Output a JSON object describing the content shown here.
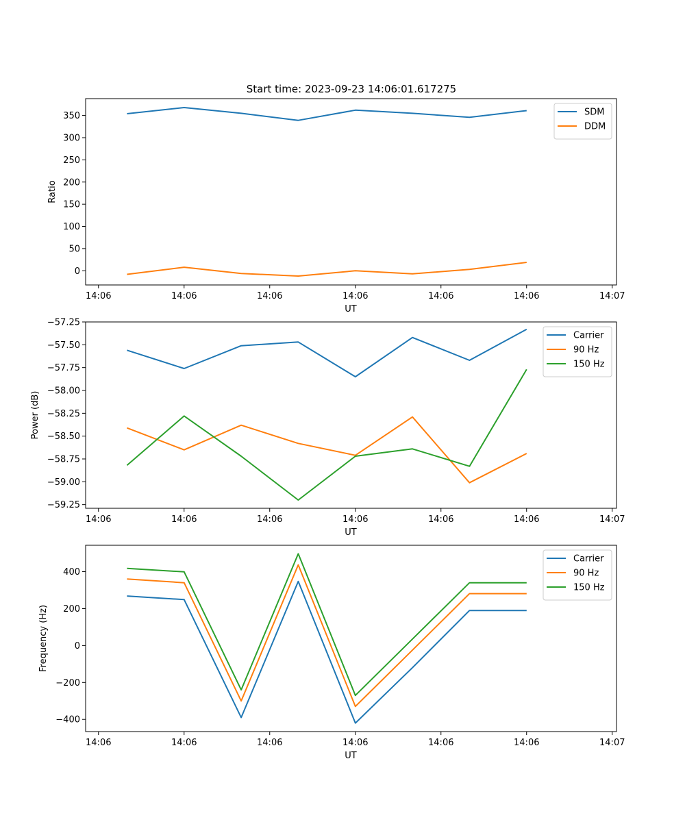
{
  "chart_data": [
    {
      "type": "line",
      "title": "Start time: 2023-09-23 14:06:01.617275",
      "xlabel": "UT",
      "ylabel": "Ratio",
      "x": [
        1,
        2,
        3,
        4,
        5,
        6,
        7,
        8
      ],
      "xlim": [
        0.275,
        9.575
      ],
      "x_ticks": [
        0.5,
        2,
        3.5,
        5,
        6.5,
        8,
        9.5
      ],
      "x_tick_labels": [
        "14:06",
        "14:06",
        "14:06",
        "14:06",
        "14:06",
        "14:06",
        "14:07"
      ],
      "ylim": [
        -32,
        388
      ],
      "y_ticks": [
        0,
        50,
        100,
        150,
        200,
        250,
        300,
        350
      ],
      "y_tick_labels": [
        "0",
        "50",
        "100",
        "150",
        "200",
        "250",
        "300",
        "350"
      ],
      "legend_position": "top-right",
      "series": [
        {
          "name": "SDM",
          "color": "#1f77b4",
          "values": [
            354,
            368,
            355,
            339,
            362,
            355,
            346,
            361
          ]
        },
        {
          "name": "DDM",
          "color": "#ff7f0e",
          "values": [
            -8,
            8,
            -6,
            -12,
            0,
            -7,
            3,
            19
          ]
        }
      ]
    },
    {
      "type": "line",
      "title": "",
      "xlabel": "UT",
      "ylabel": "Power (dB)",
      "x": [
        1,
        2,
        3,
        4,
        5,
        6,
        7,
        8
      ],
      "xlim": [
        0.275,
        9.575
      ],
      "x_ticks": [
        0.5,
        2,
        3.5,
        5,
        6.5,
        8,
        9.5
      ],
      "x_tick_labels": [
        "14:06",
        "14:06",
        "14:06",
        "14:06",
        "14:06",
        "14:06",
        "14:07"
      ],
      "ylim": [
        -59.29,
        -57.25
      ],
      "y_ticks": [
        -57.25,
        -57.5,
        -57.75,
        -58,
        -58.25,
        -58.5,
        -58.75,
        -59,
        -59.25
      ],
      "y_tick_labels": [
        "−57.25",
        "−57.50",
        "−57.75",
        "−58.00",
        "−58.25",
        "−58.50",
        "−58.75",
        "−59.00",
        "−59.25"
      ],
      "legend_position": "top-right",
      "series": [
        {
          "name": "Carrier",
          "color": "#1f77b4",
          "values": [
            -57.56,
            -57.76,
            -57.51,
            -57.47,
            -57.85,
            -57.42,
            -57.67,
            -57.33
          ]
        },
        {
          "name": "90 Hz",
          "color": "#ff7f0e",
          "values": [
            -58.41,
            -58.65,
            -58.38,
            -58.58,
            -58.71,
            -58.29,
            -59.01,
            -58.69
          ]
        },
        {
          "name": "150 Hz",
          "color": "#2ca02c",
          "values": [
            -58.82,
            -58.28,
            -58.72,
            -59.2,
            -58.72,
            -58.64,
            -58.83,
            -57.77
          ]
        }
      ]
    },
    {
      "type": "line",
      "title": "",
      "xlabel": "UT",
      "ylabel": "Frequency (Hz)",
      "x": [
        1,
        2,
        3,
        4,
        5,
        6,
        7,
        8
      ],
      "xlim": [
        0.275,
        9.575
      ],
      "x_ticks": [
        0.5,
        2,
        3.5,
        5,
        6.5,
        8,
        9.5
      ],
      "x_tick_labels": [
        "14:06",
        "14:06",
        "14:06",
        "14:06",
        "14:06",
        "14:06",
        "14:07"
      ],
      "ylim": [
        -466,
        543
      ],
      "y_ticks": [
        -400,
        -200,
        0,
        200,
        400
      ],
      "y_tick_labels": [
        "−400",
        "−200",
        "0",
        "200",
        "400"
      ],
      "legend_position": "top-right",
      "series": [
        {
          "name": "Carrier",
          "color": "#1f77b4",
          "values": [
            268,
            249,
            -390,
            347,
            -420,
            -120,
            190,
            190
          ]
        },
        {
          "name": "90 Hz",
          "color": "#ff7f0e",
          "values": [
            360,
            340,
            -300,
            437,
            -330,
            -25,
            281,
            281
          ]
        },
        {
          "name": "150 Hz",
          "color": "#2ca02c",
          "values": [
            418,
            399,
            -240,
            497,
            -270,
            35,
            340,
            340
          ]
        }
      ]
    }
  ]
}
